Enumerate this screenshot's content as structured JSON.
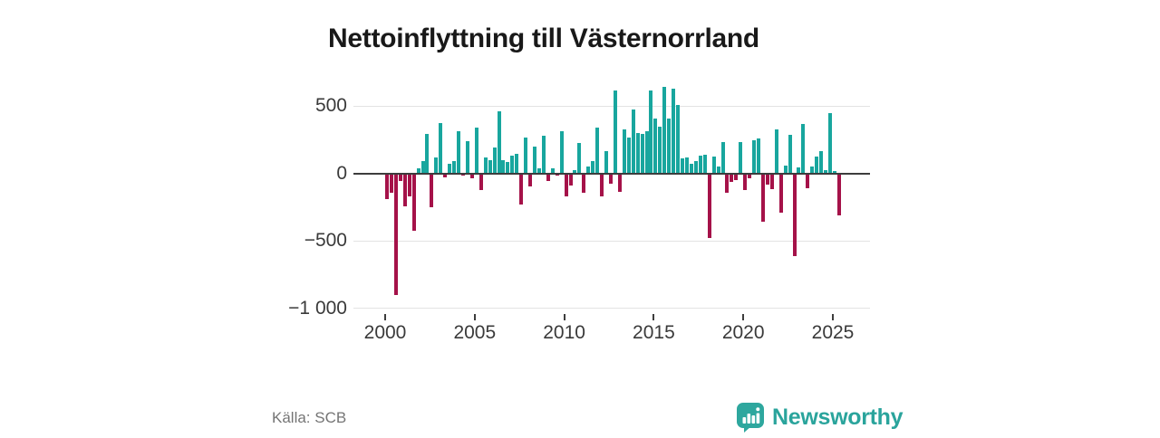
{
  "title": "Nettoinflyttning till Västernorrland",
  "source": "Källa: SCB",
  "logo": {
    "brand": "Newsworthy",
    "color": "#2aa49c"
  },
  "chart_data": {
    "type": "bar",
    "title": "Nettoinflyttning till Västernorrland",
    "periodicity": "quarterly",
    "x_start": "2000-Q1",
    "x_tick_labels": [
      "2000",
      "2005",
      "2010",
      "2015",
      "2020",
      "2025"
    ],
    "x_tick_years": [
      2000,
      2005,
      2010,
      2015,
      2020,
      2025
    ],
    "y_tick_values": [
      500,
      0,
      -500,
      -1000
    ],
    "y_tick_labels": [
      "500",
      "0",
      "−500",
      "−1 000"
    ],
    "ylim": [
      -1000,
      660
    ],
    "grid": true,
    "legend": "none",
    "colors": {
      "positive": "#18a69e",
      "negative": "#a51249",
      "axis": "#3d3d3d",
      "gridline": "#e3e3e3"
    },
    "values": [
      -190,
      -145,
      -905,
      -60,
      -245,
      -170,
      -425,
      35,
      90,
      290,
      -255,
      115,
      370,
      -30,
      70,
      90,
      310,
      -15,
      235,
      -40,
      340,
      -125,
      120,
      95,
      190,
      463,
      95,
      82,
      133,
      145,
      -232,
      268,
      -100,
      200,
      37,
      280,
      -57,
      37,
      -15,
      313,
      -170,
      -91,
      25,
      223,
      -147,
      50,
      88,
      340,
      -169,
      167,
      -80,
      616,
      -136,
      324,
      268,
      470,
      302,
      291,
      313,
      616,
      403,
      347,
      638,
      403,
      627,
      504,
      111,
      116,
      71,
      93,
      129,
      138,
      -479,
      122,
      50,
      234,
      -147,
      -62,
      -53,
      234,
      -125,
      -35,
      246,
      261,
      -356,
      -86,
      -115,
      324,
      -290,
      59,
      284,
      -614,
      44,
      369,
      -113,
      50,
      122,
      167,
      25,
      448,
      15,
      -315
    ]
  }
}
